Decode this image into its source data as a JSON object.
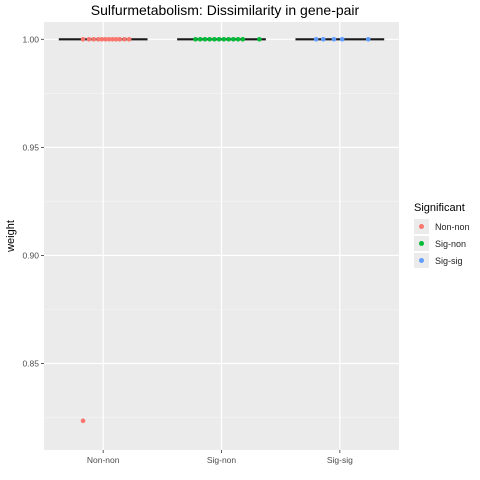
{
  "chart_data": {
    "type": "boxplot+jitter",
    "title": "Sulfurmetabolism: Dissimilarity in gene-pair",
    "xlabel": "",
    "ylabel": "weight",
    "categories": [
      "Non-non",
      "Sig-non",
      "Sig-sig"
    ],
    "ylim": [
      0.81,
      1.008
    ],
    "yticks": [
      0.85,
      0.9,
      0.95,
      1.0
    ],
    "ytick_labels": [
      "0.85",
      "0.90",
      "0.95",
      "1.00"
    ],
    "grid": true,
    "legend": {
      "title": "Significant",
      "position": "right",
      "entries": [
        {
          "label": "Non-non",
          "color": "#F8766D"
        },
        {
          "label": "Sig-non",
          "color": "#00BA38"
        },
        {
          "label": "Sig-sig",
          "color": "#619CFF"
        }
      ]
    },
    "boxes": [
      {
        "category": "Non-non",
        "median": 1.0
      },
      {
        "category": "Sig-non",
        "median": 1.0
      },
      {
        "category": "Sig-sig",
        "median": 1.0
      }
    ],
    "series": [
      {
        "name": "Non-non",
        "color": "#F8766D",
        "points": [
          {
            "x": "Non-non",
            "j": -0.17,
            "y": 1.0
          },
          {
            "x": "Non-non",
            "j": -0.12,
            "y": 1.0
          },
          {
            "x": "Non-non",
            "j": -0.08,
            "y": 1.0
          },
          {
            "x": "Non-non",
            "j": -0.04,
            "y": 1.0
          },
          {
            "x": "Non-non",
            "j": -0.01,
            "y": 1.0
          },
          {
            "x": "Non-non",
            "j": 0.02,
            "y": 1.0
          },
          {
            "x": "Non-non",
            "j": 0.05,
            "y": 1.0
          },
          {
            "x": "Non-non",
            "j": 0.08,
            "y": 1.0
          },
          {
            "x": "Non-non",
            "j": 0.11,
            "y": 1.0
          },
          {
            "x": "Non-non",
            "j": 0.14,
            "y": 1.0
          },
          {
            "x": "Non-non",
            "j": 0.18,
            "y": 1.0
          },
          {
            "x": "Non-non",
            "j": 0.22,
            "y": 1.0
          },
          {
            "x": "Non-non",
            "j": -0.17,
            "y": 0.8235
          }
        ]
      },
      {
        "name": "Sig-non",
        "color": "#00BA38",
        "points": [
          {
            "x": "Sig-non",
            "j": -0.22,
            "y": 1.0
          },
          {
            "x": "Sig-non",
            "j": -0.18,
            "y": 1.0
          },
          {
            "x": "Sig-non",
            "j": -0.14,
            "y": 1.0
          },
          {
            "x": "Sig-non",
            "j": -0.1,
            "y": 1.0
          },
          {
            "x": "Sig-non",
            "j": -0.06,
            "y": 1.0
          },
          {
            "x": "Sig-non",
            "j": -0.02,
            "y": 1.0
          },
          {
            "x": "Sig-non",
            "j": 0.02,
            "y": 1.0
          },
          {
            "x": "Sig-non",
            "j": 0.06,
            "y": 1.0
          },
          {
            "x": "Sig-non",
            "j": 0.1,
            "y": 1.0
          },
          {
            "x": "Sig-non",
            "j": 0.14,
            "y": 1.0
          },
          {
            "x": "Sig-non",
            "j": 0.18,
            "y": 1.0
          },
          {
            "x": "Sig-non",
            "j": 0.32,
            "y": 1.0
          }
        ]
      },
      {
        "name": "Sig-sig",
        "color": "#619CFF",
        "points": [
          {
            "x": "Sig-sig",
            "j": -0.2,
            "y": 1.0
          },
          {
            "x": "Sig-sig",
            "j": -0.14,
            "y": 1.0
          },
          {
            "x": "Sig-sig",
            "j": -0.05,
            "y": 1.0
          },
          {
            "x": "Sig-sig",
            "j": 0.02,
            "y": 1.0
          },
          {
            "x": "Sig-sig",
            "j": 0.24,
            "y": 1.0
          }
        ]
      }
    ]
  }
}
